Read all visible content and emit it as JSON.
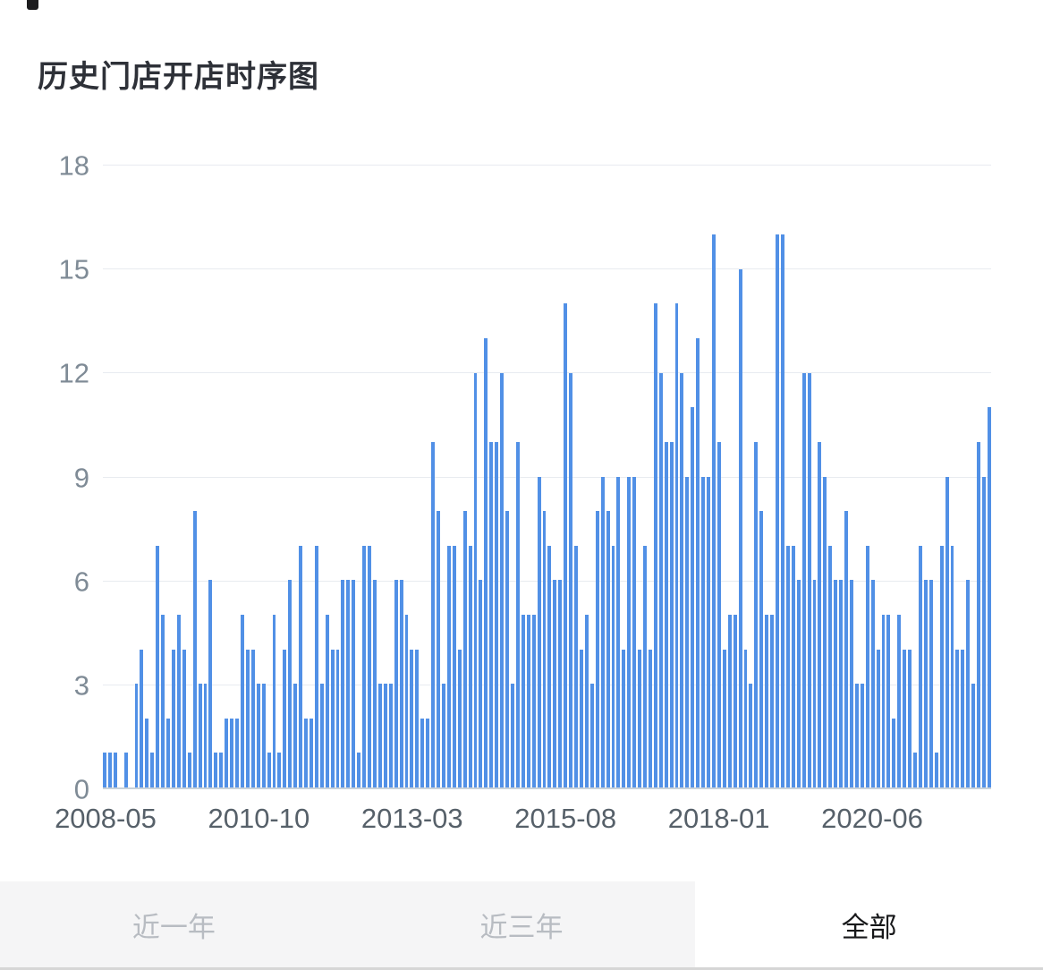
{
  "title": "历史门店开店时序图",
  "chart_data": {
    "type": "bar",
    "title": "历史门店开店时序图",
    "x_start": "2008-05",
    "x_step": "1 month",
    "xticklabels": [
      "2008-05",
      "2010-10",
      "2013-03",
      "2015-08",
      "2018-01",
      "2020-06"
    ],
    "xtick_month_indices": [
      0,
      29,
      58,
      87,
      116,
      145
    ],
    "yticks": [
      0,
      3,
      6,
      9,
      12,
      15,
      18
    ],
    "ylim": [
      0,
      18
    ],
    "grid": "horizontal",
    "legend": "none",
    "bar_color": "#5190e6",
    "values": [
      1,
      1,
      1,
      0,
      1,
      0,
      3,
      4,
      2,
      1,
      7,
      5,
      2,
      4,
      5,
      4,
      1,
      8,
      3,
      3,
      6,
      1,
      1,
      2,
      2,
      2,
      5,
      4,
      4,
      3,
      3,
      1,
      5,
      1,
      4,
      6,
      3,
      7,
      2,
      2,
      7,
      3,
      5,
      4,
      4,
      6,
      6,
      6,
      1,
      7,
      7,
      6,
      3,
      3,
      3,
      6,
      6,
      5,
      4,
      4,
      2,
      2,
      10,
      8,
      3,
      7,
      7,
      4,
      8,
      7,
      12,
      6,
      13,
      10,
      10,
      12,
      8,
      3,
      10,
      5,
      5,
      5,
      9,
      8,
      7,
      6,
      6,
      14,
      12,
      7,
      4,
      5,
      3,
      8,
      9,
      8,
      7,
      9,
      4,
      9,
      9,
      4,
      7,
      4,
      14,
      12,
      10,
      10,
      14,
      12,
      9,
      11,
      13,
      9,
      9,
      16,
      10,
      4,
      5,
      5,
      15,
      4,
      3,
      10,
      8,
      5,
      5,
      16,
      16,
      7,
      7,
      6,
      12,
      12,
      6,
      10,
      9,
      7,
      6,
      6,
      8,
      6,
      3,
      3,
      7,
      6,
      4,
      5,
      5,
      2,
      5,
      4,
      4,
      1,
      7,
      6,
      6,
      1,
      7,
      9,
      7,
      4,
      4,
      6,
      3,
      10,
      9,
      11
    ]
  },
  "tabs": [
    {
      "key": "last-year",
      "label": "近一年",
      "selected": false
    },
    {
      "key": "last-three-years",
      "label": "近三年",
      "selected": false
    },
    {
      "key": "all",
      "label": "全部",
      "selected": true
    }
  ]
}
